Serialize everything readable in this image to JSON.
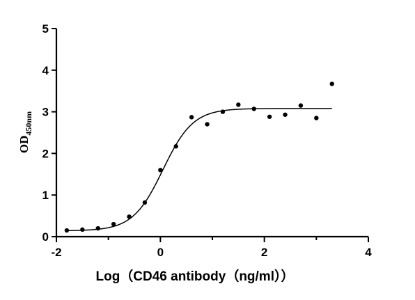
{
  "chart_data": {
    "type": "scatter",
    "xlabel": "Log（CD46 antibody（ng/ml））",
    "ylabel_main": "OD",
    "ylabel_sub": "450nm",
    "xlim": [
      -2,
      4
    ],
    "ylim": [
      0,
      5
    ],
    "x_ticks": [
      "-2",
      "0",
      "2",
      "4"
    ],
    "x_minor_ticks": [
      -1,
      1,
      3
    ],
    "y_ticks": [
      "0",
      "1",
      "2",
      "3",
      "4",
      "5"
    ],
    "grid": false,
    "legend": "none",
    "points": [
      {
        "x": -1.8,
        "y": 0.15
      },
      {
        "x": -1.5,
        "y": 0.17
      },
      {
        "x": -1.2,
        "y": 0.2
      },
      {
        "x": -0.9,
        "y": 0.3
      },
      {
        "x": -0.6,
        "y": 0.48
      },
      {
        "x": -0.3,
        "y": 0.82
      },
      {
        "x": 0.0,
        "y": 1.6
      },
      {
        "x": 0.3,
        "y": 2.17
      },
      {
        "x": 0.6,
        "y": 2.87
      },
      {
        "x": 0.9,
        "y": 2.7
      },
      {
        "x": 1.2,
        "y": 3.0
      },
      {
        "x": 1.5,
        "y": 3.17
      },
      {
        "x": 1.8,
        "y": 3.07
      },
      {
        "x": 2.1,
        "y": 2.88
      },
      {
        "x": 2.4,
        "y": 2.93
      },
      {
        "x": 2.7,
        "y": 3.15
      },
      {
        "x": 3.0,
        "y": 2.85
      },
      {
        "x": 3.3,
        "y": 3.67
      }
    ],
    "fit_curve": {
      "model": "four-parameter logistic",
      "bottom": 0.14,
      "top": 3.08,
      "log_ec50": 0.05,
      "hill_slope": 1.5,
      "x_range": [
        -1.8,
        3.3
      ]
    }
  }
}
